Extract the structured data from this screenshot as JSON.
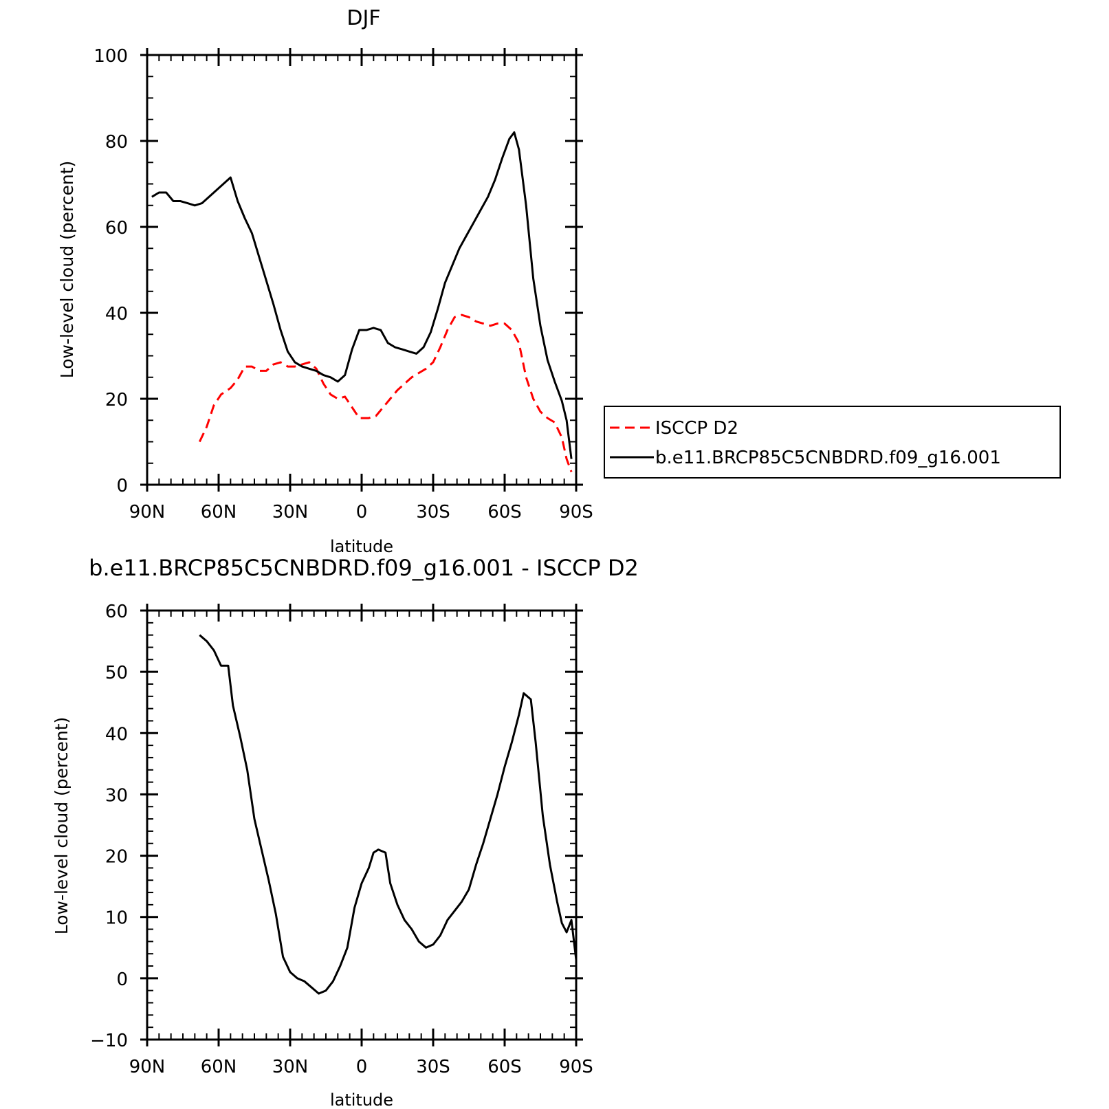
{
  "chart_data": [
    {
      "type": "line",
      "title": "DJF",
      "xlabel": "latitude",
      "ylabel": "Low-level cloud (percent)",
      "xlim": [
        -90,
        90
      ],
      "ylim": [
        0,
        100
      ],
      "x_ticks": [
        {
          "value": -90,
          "label": "90N"
        },
        {
          "value": -60,
          "label": "60N"
        },
        {
          "value": -30,
          "label": "30N"
        },
        {
          "value": 0,
          "label": "0"
        },
        {
          "value": 30,
          "label": "30S"
        },
        {
          "value": 60,
          "label": "60S"
        },
        {
          "value": 90,
          "label": "90S"
        }
      ],
      "y_ticks": [
        {
          "value": 0,
          "label": "0"
        },
        {
          "value": 20,
          "label": "20"
        },
        {
          "value": 40,
          "label": "40"
        },
        {
          "value": 60,
          "label": "60"
        },
        {
          "value": 80,
          "label": "80"
        },
        {
          "value": 100,
          "label": "100"
        }
      ],
      "legend": {
        "placement": "right"
      },
      "series": [
        {
          "name": "ISCCP D2",
          "color": "#ff0000",
          "dash": "dashed",
          "points": [
            [
              -68,
              10
            ],
            [
              -65,
              13.5
            ],
            [
              -62,
              18.5
            ],
            [
              -59,
              21
            ],
            [
              -55,
              22.5
            ],
            [
              -52,
              24.5
            ],
            [
              -49,
              27.5
            ],
            [
              -46,
              27.5
            ],
            [
              -43,
              26.5
            ],
            [
              -40,
              26.5
            ],
            [
              -37,
              28
            ],
            [
              -34,
              28.5
            ],
            [
              -31,
              27.5
            ],
            [
              -28,
              27.5
            ],
            [
              -25,
              28
            ],
            [
              -22,
              28.5
            ],
            [
              -19,
              27
            ],
            [
              -16,
              23.5
            ],
            [
              -13,
              21
            ],
            [
              -10,
              20
            ],
            [
              -7,
              20.5
            ],
            [
              -4,
              18
            ],
            [
              -1,
              15.5
            ],
            [
              3,
              15.5
            ],
            [
              6,
              16
            ],
            [
              9,
              18
            ],
            [
              12,
              20
            ],
            [
              15,
              22
            ],
            [
              18,
              23.5
            ],
            [
              21,
              25
            ],
            [
              24,
              26
            ],
            [
              27,
              27
            ],
            [
              30,
              28.5
            ],
            [
              33,
              32
            ],
            [
              36,
              36
            ],
            [
              39,
              39
            ],
            [
              42,
              39.5
            ],
            [
              45,
              39
            ],
            [
              48,
              38
            ],
            [
              51,
              37.5
            ],
            [
              54,
              37
            ],
            [
              57,
              37.5
            ],
            [
              60,
              37.5
            ],
            [
              63,
              36
            ],
            [
              66,
              33
            ],
            [
              69,
              25
            ],
            [
              72,
              20
            ],
            [
              75,
              17
            ],
            [
              78,
              15.5
            ],
            [
              81,
              14.5
            ],
            [
              84,
              11
            ],
            [
              86,
              6
            ],
            [
              88,
              3
            ]
          ]
        },
        {
          "name": "b.e11.BRCP85C5CNBDRD.f09_g16.001",
          "color": "#000000",
          "dash": "solid",
          "points": [
            [
              -88,
              67
            ],
            [
              -85,
              68
            ],
            [
              -82,
              68
            ],
            [
              -79,
              66
            ],
            [
              -76,
              66
            ],
            [
              -73,
              65.5
            ],
            [
              -70,
              65
            ],
            [
              -67,
              65.5
            ],
            [
              -64,
              67
            ],
            [
              -61,
              68.5
            ],
            [
              -58,
              70
            ],
            [
              -55,
              71.5
            ],
            [
              -52,
              66
            ],
            [
              -49,
              62
            ],
            [
              -46,
              58.5
            ],
            [
              -43,
              53
            ],
            [
              -40,
              47.5
            ],
            [
              -37,
              42
            ],
            [
              -34,
              36
            ],
            [
              -31,
              31
            ],
            [
              -28,
              28.5
            ],
            [
              -25,
              27.5
            ],
            [
              -22,
              27
            ],
            [
              -19,
              26.5
            ],
            [
              -16,
              25.5
            ],
            [
              -13,
              25
            ],
            [
              -10,
              24
            ],
            [
              -7,
              25.5
            ],
            [
              -4,
              31.5
            ],
            [
              -1,
              36
            ],
            [
              2,
              36
            ],
            [
              5,
              36.5
            ],
            [
              8,
              36
            ],
            [
              11,
              33
            ],
            [
              14,
              32
            ],
            [
              17,
              31.5
            ],
            [
              20,
              31
            ],
            [
              23,
              30.5
            ],
            [
              26,
              32
            ],
            [
              29,
              35.5
            ],
            [
              32,
              41
            ],
            [
              35,
              47
            ],
            [
              38,
              51
            ],
            [
              41,
              55
            ],
            [
              44,
              58
            ],
            [
              47,
              61
            ],
            [
              50,
              64
            ],
            [
              53,
              67
            ],
            [
              56,
              71
            ],
            [
              59,
              76
            ],
            [
              62,
              80.5
            ],
            [
              64,
              82
            ],
            [
              66,
              78
            ],
            [
              69,
              65
            ],
            [
              72,
              48
            ],
            [
              75,
              37
            ],
            [
              78,
              29
            ],
            [
              81,
              24
            ],
            [
              84,
              19.5
            ],
            [
              86,
              15
            ],
            [
              88,
              6
            ]
          ]
        }
      ]
    },
    {
      "type": "line",
      "title": "b.e11.BRCP85C5CNBDRD.f09_g16.001 - ISCCP D2",
      "xlabel": "latitude",
      "ylabel": "Low-level cloud (percent)",
      "xlim": [
        -90,
        90
      ],
      "ylim": [
        -10,
        60
      ],
      "x_ticks": [
        {
          "value": -90,
          "label": "90N"
        },
        {
          "value": -60,
          "label": "60N"
        },
        {
          "value": -30,
          "label": "30N"
        },
        {
          "value": 0,
          "label": "0"
        },
        {
          "value": 30,
          "label": "30S"
        },
        {
          "value": 60,
          "label": "60S"
        },
        {
          "value": 90,
          "label": "90S"
        }
      ],
      "y_ticks": [
        {
          "value": -10,
          "label": "−10"
        },
        {
          "value": 0,
          "label": "0"
        },
        {
          "value": 10,
          "label": "10"
        },
        {
          "value": 20,
          "label": "20"
        },
        {
          "value": 30,
          "label": "30"
        },
        {
          "value": 40,
          "label": "40"
        },
        {
          "value": 50,
          "label": "50"
        },
        {
          "value": 60,
          "label": "60"
        }
      ],
      "series": [
        {
          "color": "#000000",
          "dash": "solid",
          "points": [
            [
              -68,
              56
            ],
            [
              -65,
              55
            ],
            [
              -62,
              53.5
            ],
            [
              -59,
              51
            ],
            [
              -56,
              51
            ],
            [
              -54,
              44.5
            ],
            [
              -51,
              39.5
            ],
            [
              -48,
              34
            ],
            [
              -45,
              26
            ],
            [
              -42,
              21
            ],
            [
              -39,
              16
            ],
            [
              -36,
              10.5
            ],
            [
              -33,
              3.5
            ],
            [
              -30,
              1
            ],
            [
              -27,
              0
            ],
            [
              -24,
              -0.5
            ],
            [
              -21,
              -1.5
            ],
            [
              -18,
              -2.5
            ],
            [
              -15,
              -2
            ],
            [
              -12,
              -0.5
            ],
            [
              -9,
              2
            ],
            [
              -6,
              5
            ],
            [
              -3,
              11.5
            ],
            [
              0,
              15.5
            ],
            [
              3,
              18
            ],
            [
              5,
              20.5
            ],
            [
              7,
              21
            ],
            [
              10,
              20.5
            ],
            [
              12,
              15.5
            ],
            [
              15,
              12
            ],
            [
              18,
              9.5
            ],
            [
              21,
              8
            ],
            [
              24,
              6
            ],
            [
              27,
              5
            ],
            [
              30,
              5.5
            ],
            [
              33,
              7
            ],
            [
              36,
              9.5
            ],
            [
              39,
              11
            ],
            [
              42,
              12.5
            ],
            [
              45,
              14.5
            ],
            [
              48,
              18.5
            ],
            [
              51,
              22
            ],
            [
              54,
              26
            ],
            [
              57,
              30
            ],
            [
              60,
              34.5
            ],
            [
              63,
              38.5
            ],
            [
              66,
              43
            ],
            [
              68,
              46.5
            ],
            [
              71,
              45.5
            ],
            [
              73,
              38.5
            ],
            [
              76,
              26.5
            ],
            [
              79,
              18.5
            ],
            [
              82,
              12.5
            ],
            [
              84,
              9
            ],
            [
              86,
              7.5
            ],
            [
              88,
              9.5
            ],
            [
              90,
              3
            ]
          ]
        }
      ]
    }
  ]
}
